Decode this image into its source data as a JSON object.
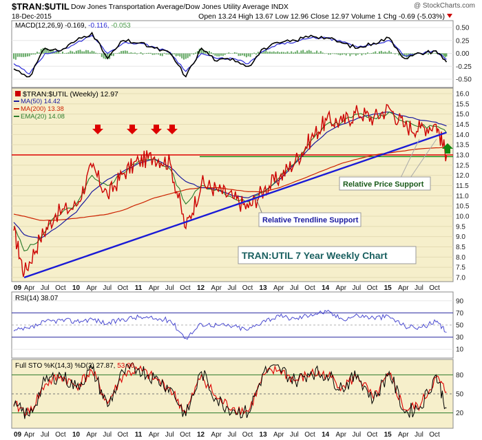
{
  "header": {
    "symbol": "$TRAN:$UTIL",
    "description": "Dow Jones Transportation Average/Dow Jones Utility Average INDX",
    "watermark": "@ StockCharts.com",
    "date": "18-Dec-2015",
    "quote": "Open 13.24  High 13.67  Low 12.96  Close 12.97  Volume 1  Chg -0.69 (-5.03%)"
  },
  "colors": {
    "price_panel_bg": "#f6efcb",
    "sto_panel_bg": "#f6efcb",
    "price": "#cc0000",
    "ma50": "#1a1a9e",
    "ma200": "#cc2200",
    "ema20": "#2a7a2a",
    "trendline": "#1a1ad6",
    "resistance": "#dd0000",
    "support": "#118811",
    "rsi": "#4a4ad0",
    "sto_k": "#000000",
    "sto_d": "#dd0000",
    "macd_hist": "#4a9a4a"
  },
  "macd_panel": {
    "label": "MACD(12,26,9) -0.169, -0.116, -0.053",
    "legend_parts": [
      "MACD(12,26,9)",
      " -0.169,",
      " -0.116,",
      " -0.053"
    ],
    "y_ticks": [
      "0.50",
      "0.25",
      "0.00",
      "-0.25",
      "-0.50"
    ]
  },
  "price_panel": {
    "legend": {
      "title": "$TRAN:$UTIL (Weekly) 12.97",
      "ma50": "MA(50) 14.42",
      "ma200": "MA(200) 13.38",
      "ema20": "EMA(20) 14.08"
    },
    "y_ticks": [
      "16.0",
      "15.5",
      "15.0",
      "14.5",
      "14.0",
      "13.5",
      "13.0",
      "12.5",
      "12.0",
      "11.5",
      "11.0",
      "10.5",
      "10.0",
      "9.5",
      "9.0",
      "8.5",
      "8.0",
      "7.5",
      "7.0"
    ],
    "annotations": {
      "relative_price_support": "Relative Price Support",
      "relative_trendline_support": "Relative Trendline Support",
      "chart_title": "TRAN:UTIL 7 Year Weekly Chart"
    }
  },
  "rsi_panel": {
    "label": "RSI(14) 38.07",
    "y_ticks": [
      "90",
      "70",
      "50",
      "30",
      "10"
    ]
  },
  "sto_panel": {
    "label_prefix": "Full STO %K(14,3) %D(3) 27.87,",
    "label_d": " 53.06",
    "y_ticks": [
      "80",
      "50",
      "20"
    ]
  },
  "x_axis": {
    "labels": [
      "09",
      "Apr",
      "Jul",
      "Oct",
      "10",
      "Apr",
      "Jul",
      "Oct",
      "11",
      "Apr",
      "Jul",
      "Oct",
      "12",
      "Apr",
      "Jul",
      "Oct",
      "13",
      "Apr",
      "Jul",
      "Oct",
      "14",
      "Apr",
      "Jul",
      "Oct",
      "15",
      "Apr",
      "Jul",
      "Oct"
    ],
    "bold_labels": [
      "09",
      "10",
      "11",
      "12",
      "13",
      "14",
      "15"
    ]
  },
  "chart_data": [
    {
      "type": "line",
      "title": "$TRAN:$UTIL (Weekly)",
      "subtitle": "18-Dec-2015",
      "x": [
        "2009-01",
        "2009-03",
        "2009-06",
        "2009-09",
        "2010-01",
        "2010-04",
        "2010-07",
        "2010-10",
        "2011-01",
        "2011-04",
        "2011-07",
        "2011-10",
        "2012-01",
        "2012-04",
        "2012-07",
        "2012-10",
        "2013-01",
        "2013-04",
        "2013-07",
        "2013-10",
        "2014-01",
        "2014-04",
        "2014-07",
        "2014-10",
        "2015-01",
        "2015-04",
        "2015-07",
        "2015-10",
        "2015-12"
      ],
      "ylim": [
        7.0,
        16.0
      ],
      "series": [
        {
          "name": "$TRAN:$UTIL",
          "values": [
            9.3,
            7.2,
            8.9,
            10.1,
            10.5,
            12.4,
            11.0,
            12.1,
            12.7,
            12.9,
            12.6,
            9.4,
            11.6,
            11.3,
            10.9,
            10.4,
            11.3,
            11.9,
            12.7,
            13.8,
            14.7,
            14.6,
            15.1,
            14.8,
            15.3,
            14.4,
            14.3,
            14.5,
            12.97
          ]
        },
        {
          "name": "MA(50)",
          "values": [
            9.7,
            9.1,
            8.9,
            9.4,
            10.2,
            11.2,
            11.8,
            12.2,
            12.6,
            12.8,
            12.4,
            11.7,
            11.4,
            11.3,
            11.0,
            10.9,
            11.2,
            11.8,
            12.6,
            13.4,
            14.1,
            14.5,
            14.8,
            15.0,
            15.1,
            14.9,
            14.7,
            14.6,
            14.42
          ]
        },
        {
          "name": "MA(200)",
          "values": [
            10.1,
            10.0,
            9.8,
            9.8,
            9.9,
            10.0,
            10.1,
            10.3,
            10.6,
            10.9,
            11.1,
            11.3,
            11.4,
            11.4,
            11.3,
            11.2,
            11.2,
            11.4,
            11.7,
            12.0,
            12.3,
            12.6,
            12.8,
            13.0,
            13.1,
            13.2,
            13.3,
            13.35,
            13.38
          ]
        },
        {
          "name": "EMA(20)",
          "values": [
            9.5,
            8.3,
            8.9,
            10.0,
            10.6,
            12.0,
            11.5,
            12.1,
            12.7,
            12.8,
            12.3,
            10.6,
            11.5,
            11.3,
            10.9,
            10.7,
            11.2,
            11.9,
            12.6,
            13.7,
            14.5,
            14.6,
            15.0,
            14.8,
            15.1,
            14.6,
            14.4,
            14.4,
            14.08
          ]
        }
      ],
      "levels": [
        {
          "name": "resistance",
          "value": 13.0
        },
        {
          "name": "support",
          "value": 12.95
        }
      ],
      "trendline": {
        "from": {
          "x": "2009-03",
          "y": 7.0
        },
        "to": {
          "x": "2015-12",
          "y": 14.1
        }
      }
    },
    {
      "type": "line",
      "title": "MACD(12,26,9)",
      "ylim": [
        -0.62,
        0.58
      ],
      "x": [
        "2009-01",
        "2009-04",
        "2009-07",
        "2009-10",
        "2010-01",
        "2010-04",
        "2010-07",
        "2010-10",
        "2011-01",
        "2011-04",
        "2011-07",
        "2011-10",
        "2012-01",
        "2012-04",
        "2012-07",
        "2012-10",
        "2013-01",
        "2013-04",
        "2013-07",
        "2013-10",
        "2014-01",
        "2014-04",
        "2014-07",
        "2014-10",
        "2015-01",
        "2015-04",
        "2015-07",
        "2015-10",
        "2015-12"
      ],
      "series": [
        {
          "name": "MACD",
          "values": [
            -0.3,
            -0.45,
            0.1,
            0.05,
            0.25,
            0.4,
            -0.1,
            0.25,
            0.2,
            0.1,
            0.0,
            -0.45,
            0.1,
            -0.15,
            -0.1,
            -0.25,
            0.1,
            0.2,
            0.25,
            0.35,
            0.3,
            0.2,
            0.1,
            0.2,
            0.3,
            -0.1,
            0.0,
            0.05,
            -0.169
          ]
        },
        {
          "name": "Signal",
          "values": [
            -0.2,
            -0.4,
            0.0,
            0.05,
            0.2,
            0.35,
            0.0,
            0.2,
            0.2,
            0.12,
            0.02,
            -0.35,
            0.0,
            -0.1,
            -0.1,
            -0.2,
            0.05,
            0.18,
            0.22,
            0.3,
            0.3,
            0.22,
            0.12,
            0.18,
            0.25,
            -0.05,
            0.0,
            0.04,
            -0.116
          ]
        },
        {
          "name": "Histogram",
          "values": [
            -0.1,
            -0.05,
            0.1,
            0.0,
            0.05,
            0.05,
            -0.1,
            0.05,
            0.0,
            -0.02,
            -0.02,
            -0.1,
            0.1,
            -0.05,
            0.0,
            -0.05,
            0.05,
            0.02,
            0.03,
            0.05,
            0.0,
            -0.02,
            -0.02,
            0.02,
            0.05,
            -0.05,
            0.0,
            0.01,
            -0.053
          ]
        }
      ]
    },
    {
      "type": "line",
      "title": "RSI(14)",
      "ylim": [
        0,
        100
      ],
      "x": [
        "2009-01",
        "2009-04",
        "2009-07",
        "2009-10",
        "2010-01",
        "2010-04",
        "2010-07",
        "2010-10",
        "2011-01",
        "2011-04",
        "2011-07",
        "2011-10",
        "2012-01",
        "2012-04",
        "2012-07",
        "2012-10",
        "2013-01",
        "2013-04",
        "2013-07",
        "2013-10",
        "2014-01",
        "2014-04",
        "2014-07",
        "2014-10",
        "2015-01",
        "2015-04",
        "2015-07",
        "2015-10",
        "2015-12"
      ],
      "series": [
        {
          "name": "RSI(14)",
          "values": [
            40,
            44,
            55,
            58,
            56,
            60,
            52,
            60,
            63,
            60,
            58,
            28,
            52,
            50,
            48,
            42,
            58,
            64,
            60,
            68,
            72,
            60,
            66,
            62,
            64,
            48,
            46,
            55,
            38.07
          ]
        }
      ]
    },
    {
      "type": "line",
      "title": "Full STO %K(14,3) %D(3)",
      "ylim": [
        0,
        100
      ],
      "x": [
        "2009-01",
        "2009-04",
        "2009-07",
        "2009-10",
        "2010-01",
        "2010-04",
        "2010-07",
        "2010-10",
        "2011-01",
        "2011-04",
        "2011-07",
        "2011-10",
        "2012-01",
        "2012-04",
        "2012-07",
        "2012-10",
        "2013-01",
        "2013-04",
        "2013-07",
        "2013-10",
        "2014-01",
        "2014-04",
        "2014-07",
        "2014-10",
        "2015-01",
        "2015-04",
        "2015-07",
        "2015-10",
        "2015-12"
      ],
      "series": [
        {
          "name": "%K",
          "values": [
            30,
            15,
            70,
            80,
            60,
            90,
            30,
            85,
            90,
            75,
            60,
            15,
            85,
            40,
            25,
            20,
            85,
            90,
            70,
            85,
            80,
            60,
            80,
            40,
            85,
            20,
            30,
            80,
            27.87
          ]
        },
        {
          "name": "%D",
          "values": [
            32,
            20,
            65,
            78,
            62,
            86,
            35,
            80,
            88,
            74,
            58,
            20,
            80,
            42,
            28,
            22,
            80,
            88,
            70,
            82,
            80,
            62,
            78,
            42,
            80,
            25,
            32,
            76,
            53.06
          ]
        }
      ]
    }
  ]
}
